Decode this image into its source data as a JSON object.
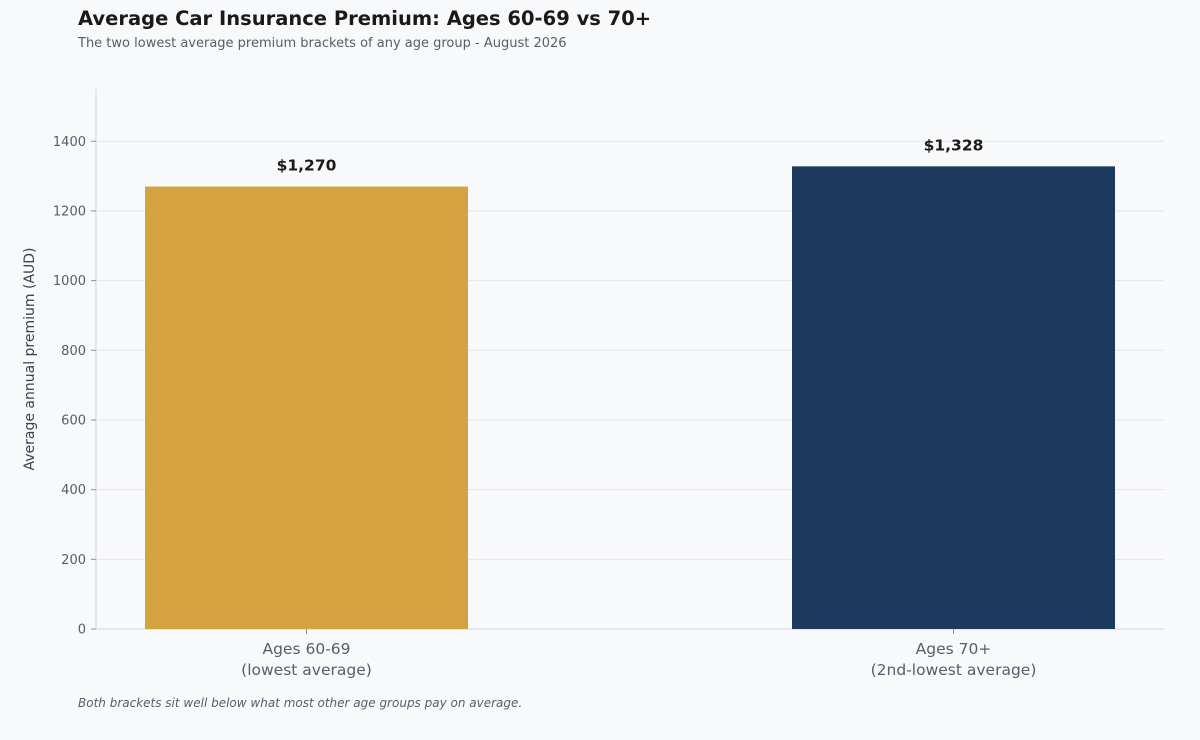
{
  "chart_data": {
    "type": "bar",
    "title": "Average Car Insurance Premium: Ages 60-69 vs 70+",
    "subtitle": "The two lowest average premium brackets of any age group - August 2026",
    "xlabel": "",
    "ylabel": "Average annual premium (AUD)",
    "categories": [
      [
        "Ages 60-69",
        "(lowest average)"
      ],
      [
        "Ages 70+",
        "(2nd-lowest average)"
      ]
    ],
    "values": [
      1270,
      1328
    ],
    "value_labels": [
      "$1,270",
      "$1,328"
    ],
    "colors": [
      "#d4a23f",
      "#1d3a5e"
    ],
    "ylim": [
      0,
      1550
    ],
    "yticks": [
      0,
      200,
      400,
      600,
      800,
      1000,
      1200,
      1400
    ],
    "grid": true,
    "legend": "none",
    "footnote": "Both brackets sit well below what most other age groups pay on average."
  }
}
